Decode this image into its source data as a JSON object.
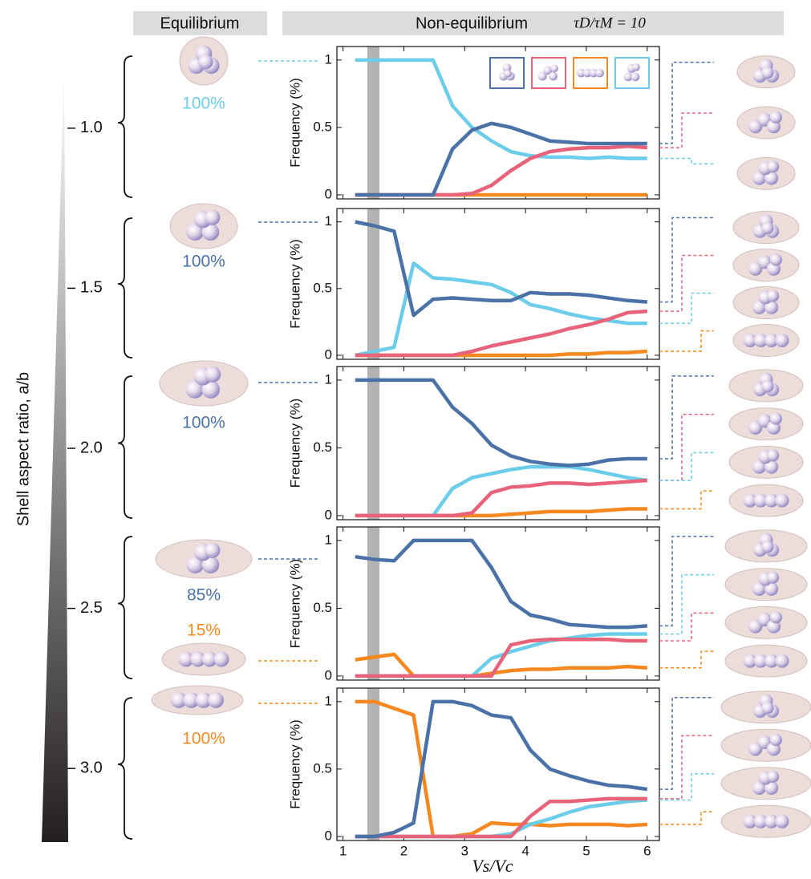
{
  "header": {
    "equilibrium": "Equilibrium",
    "non_equilibrium": "Non-equilibrium",
    "ratio": "τD/τM = 10"
  },
  "aspect_axis": {
    "label": "Shell aspect ratio, a/b",
    "lim": [
      0.8,
      3.23
    ],
    "ticks": [
      {
        "value": 1,
        "label": "1.0"
      },
      {
        "value": 1.5,
        "label": "1.5"
      },
      {
        "value": 2,
        "label": "2.0"
      },
      {
        "value": 2.5,
        "label": "2.5"
      },
      {
        "value": 3,
        "label": "3.0"
      }
    ]
  },
  "equilibrium": [
    {
      "text": "100%",
      "color": "#6ccdeb"
    },
    {
      "text": "100%",
      "color": "#4a72a6"
    },
    {
      "text": "100%",
      "color": "#4a72a6"
    },
    {
      "text": "85%",
      "color": "#4a72a6"
    },
    {
      "text": "15%",
      "color": "#f5891f"
    },
    {
      "text": "100%",
      "color": "#f5891f"
    }
  ],
  "chart_data": [
    {
      "type": "line",
      "ylabel": "Frequency (%)",
      "legend": true,
      "x": [
        1.2,
        1.52,
        1.84,
        2.16,
        2.48,
        2.8,
        3.12,
        3.44,
        3.76,
        4.08,
        4.4,
        4.72,
        5.04,
        5.36,
        5.68,
        6.0
      ],
      "series": [
        {
          "color": "#4a72a6",
          "values": [
            0,
            0,
            0,
            0,
            0,
            0.34,
            0.48,
            0.53,
            0.5,
            0.45,
            0.4,
            0.39,
            0.38,
            0.38,
            0.38,
            0.38
          ]
        },
        {
          "color": "#e8637a",
          "values": [
            0,
            0,
            0,
            0,
            0,
            0,
            0.01,
            0.07,
            0.18,
            0.27,
            0.32,
            0.34,
            0.35,
            0.35,
            0.36,
            0.35
          ]
        },
        {
          "color": "#f5891f",
          "values": [
            0,
            0,
            0,
            0,
            0,
            0,
            0,
            0,
            0,
            0,
            0,
            0,
            0,
            0,
            0,
            0
          ]
        },
        {
          "color": "#6ccdeb",
          "values": [
            1,
            1,
            1,
            1,
            1,
            0.66,
            0.5,
            0.4,
            0.32,
            0.29,
            0.28,
            0.28,
            0.27,
            0.28,
            0.27,
            0.27
          ]
        }
      ],
      "xlim": [
        0.9,
        6.2
      ],
      "ylim": [
        -0.03,
        1.1
      ],
      "xticks": [
        1,
        2,
        3,
        4,
        5,
        6
      ],
      "yticks": [
        0,
        0.5,
        1
      ],
      "band": [
        1.4,
        1.6
      ],
      "band_color": "#b3b3b3"
    },
    {
      "type": "line",
      "ylabel": "Frequency (%)",
      "x": [
        1.2,
        1.52,
        1.84,
        2.16,
        2.48,
        2.8,
        3.12,
        3.44,
        3.76,
        4.08,
        4.4,
        4.72,
        5.04,
        5.36,
        5.68,
        6.0
      ],
      "series": [
        {
          "color": "#4a72a6",
          "values": [
            1,
            0.97,
            0.93,
            0.3,
            0.42,
            0.43,
            0.42,
            0.41,
            0.41,
            0.47,
            0.46,
            0.46,
            0.45,
            0.43,
            0.41,
            0.4
          ]
        },
        {
          "color": "#e8637a",
          "values": [
            0,
            0,
            0,
            0,
            0,
            0,
            0.03,
            0.07,
            0.1,
            0.13,
            0.16,
            0.2,
            0.23,
            0.27,
            0.32,
            0.33
          ]
        },
        {
          "color": "#f5891f",
          "values": [
            0,
            0,
            0,
            0,
            0,
            0,
            0,
            0,
            0,
            0,
            0,
            0.01,
            0.01,
            0.02,
            0.02,
            0.03
          ]
        },
        {
          "color": "#6ccdeb",
          "values": [
            0,
            0.03,
            0.06,
            0.69,
            0.58,
            0.57,
            0.55,
            0.53,
            0.47,
            0.38,
            0.35,
            0.31,
            0.28,
            0.26,
            0.24,
            0.24
          ]
        }
      ],
      "xlim": [
        0.9,
        6.2
      ],
      "ylim": [
        -0.03,
        1.1
      ],
      "xticks": [
        1,
        2,
        3,
        4,
        5,
        6
      ],
      "yticks": [
        0,
        0.5,
        1
      ],
      "band": [
        1.4,
        1.6
      ],
      "band_color": "#b3b3b3"
    },
    {
      "type": "line",
      "ylabel": "Frequency (%)",
      "x": [
        1.2,
        1.52,
        1.84,
        2.16,
        2.48,
        2.8,
        3.12,
        3.44,
        3.76,
        4.08,
        4.4,
        4.72,
        5.04,
        5.36,
        5.68,
        6.0
      ],
      "series": [
        {
          "color": "#4a72a6",
          "values": [
            1,
            1,
            1,
            1,
            1,
            0.8,
            0.68,
            0.52,
            0.44,
            0.4,
            0.38,
            0.37,
            0.38,
            0.41,
            0.42,
            0.42
          ]
        },
        {
          "color": "#e8637a",
          "values": [
            0,
            0,
            0,
            0,
            0,
            0,
            0.02,
            0.17,
            0.21,
            0.22,
            0.24,
            0.24,
            0.23,
            0.24,
            0.25,
            0.26
          ]
        },
        {
          "color": "#f5891f",
          "values": [
            0,
            0,
            0,
            0,
            0,
            0,
            0,
            0,
            0.01,
            0.02,
            0.03,
            0.03,
            0.03,
            0.04,
            0.05,
            0.05
          ]
        },
        {
          "color": "#6ccdeb",
          "values": [
            0,
            0,
            0,
            0,
            0,
            0.2,
            0.28,
            0.31,
            0.34,
            0.36,
            0.36,
            0.36,
            0.34,
            0.31,
            0.28,
            0.26
          ]
        }
      ],
      "xlim": [
        0.9,
        6.2
      ],
      "ylim": [
        -0.03,
        1.1
      ],
      "xticks": [
        1,
        2,
        3,
        4,
        5,
        6
      ],
      "yticks": [
        0,
        0.5,
        1
      ],
      "band": [
        1.4,
        1.6
      ],
      "band_color": "#b3b3b3"
    },
    {
      "type": "line",
      "ylabel": "Frequency (%)",
      "x": [
        1.2,
        1.52,
        1.84,
        2.16,
        2.48,
        2.8,
        3.12,
        3.44,
        3.76,
        4.08,
        4.4,
        4.72,
        5.04,
        5.36,
        5.68,
        6.0
      ],
      "series": [
        {
          "color": "#4a72a6",
          "values": [
            0.88,
            0.86,
            0.85,
            1,
            1,
            1,
            1,
            0.8,
            0.55,
            0.45,
            0.42,
            0.38,
            0.37,
            0.36,
            0.36,
            0.37
          ]
        },
        {
          "color": "#e8637a",
          "values": [
            0,
            0,
            0,
            0,
            0,
            0,
            0,
            0,
            0.23,
            0.26,
            0.27,
            0.27,
            0.27,
            0.27,
            0.26,
            0.26
          ]
        },
        {
          "color": "#f5891f",
          "values": [
            0.12,
            0.14,
            0.16,
            0,
            0,
            0,
            0,
            0.02,
            0.04,
            0.05,
            0.05,
            0.06,
            0.06,
            0.06,
            0.07,
            0.06
          ]
        },
        {
          "color": "#6ccdeb",
          "values": [
            0,
            0,
            0,
            0,
            0,
            0,
            0,
            0.13,
            0.18,
            0.22,
            0.26,
            0.28,
            0.3,
            0.31,
            0.31,
            0.31
          ]
        }
      ],
      "xlim": [
        0.9,
        6.2
      ],
      "ylim": [
        -0.03,
        1.1
      ],
      "xticks": [
        1,
        2,
        3,
        4,
        5,
        6
      ],
      "yticks": [
        0,
        0.5,
        1
      ],
      "band": [
        1.4,
        1.6
      ],
      "band_color": "#b3b3b3"
    },
    {
      "type": "line",
      "ylabel": "Frequency (%)",
      "xlabel": "Vs/Vc",
      "x": [
        1.2,
        1.52,
        1.84,
        2.16,
        2.48,
        2.8,
        3.12,
        3.44,
        3.76,
        4.08,
        4.4,
        4.72,
        5.04,
        5.36,
        5.68,
        6.0
      ],
      "series": [
        {
          "color": "#4a72a6",
          "values": [
            0,
            0,
            0.03,
            0.1,
            1,
            1,
            0.97,
            0.9,
            0.88,
            0.64,
            0.5,
            0.45,
            0.41,
            0.38,
            0.37,
            0.35
          ]
        },
        {
          "color": "#e8637a",
          "values": [
            0,
            0,
            0,
            0,
            0,
            0,
            0,
            0,
            0,
            0.15,
            0.26,
            0.26,
            0.27,
            0.28,
            0.28,
            0.28
          ]
        },
        {
          "color": "#f5891f",
          "values": [
            1,
            1,
            0.95,
            0.9,
            0,
            0,
            0.02,
            0.1,
            0.09,
            0.09,
            0.08,
            0.09,
            0.09,
            0.09,
            0.08,
            0.09
          ]
        },
        {
          "color": "#6ccdeb",
          "values": [
            0,
            0,
            0,
            0,
            0,
            0,
            0,
            0,
            0.02,
            0.09,
            0.13,
            0.18,
            0.22,
            0.24,
            0.26,
            0.27
          ]
        }
      ],
      "xlim": [
        0.9,
        6.2
      ],
      "ylim": [
        -0.03,
        1.1
      ],
      "xticks": [
        1,
        2,
        3,
        4,
        5,
        6
      ],
      "yticks": [
        0,
        0.5,
        1
      ],
      "band": [
        1.4,
        1.6
      ],
      "band_color": "#b3b3b3"
    }
  ]
}
